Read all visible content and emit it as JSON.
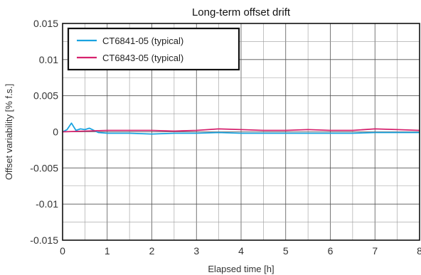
{
  "chart_data": {
    "type": "line",
    "title": "Long-term offset drift",
    "xlabel": "Elapsed time [h]",
    "ylabel": "Offset variability [% f.s.]",
    "xlim": [
      0,
      8
    ],
    "ylim": [
      -0.015,
      0.015
    ],
    "x_ticks": [
      "0",
      "1",
      "2",
      "3",
      "4",
      "5",
      "6",
      "7",
      "8"
    ],
    "y_ticks": [
      "0.015",
      "0.01",
      "0.005",
      "0",
      "-0.005",
      "-0.01",
      "-0.015"
    ],
    "grid": true,
    "legend_position": "top-left",
    "series": [
      {
        "name": "CT6841-05 (typical)",
        "color": "#1aa3e0",
        "x": [
          0,
          0.1,
          0.2,
          0.3,
          0.4,
          0.5,
          0.6,
          0.8,
          1,
          1.5,
          2,
          2.5,
          3,
          3.5,
          4,
          4.5,
          5,
          5.5,
          6,
          6.5,
          7,
          7.5,
          8
        ],
        "y": [
          0,
          0.0003,
          0.0012,
          0.0002,
          0.0004,
          0.0003,
          0.0005,
          -0.0001,
          -0.0002,
          -0.0002,
          -0.0003,
          -0.0002,
          -0.0002,
          -0.0001,
          -0.0002,
          -0.0002,
          -0.0002,
          -0.0002,
          -0.0002,
          -0.0002,
          -0.0001,
          -0.0001,
          -0.0001
        ]
      },
      {
        "name": "CT6843-05 (typical)",
        "color": "#d6226e",
        "x": [
          0,
          0.5,
          1,
          1.5,
          2,
          2.5,
          3,
          3.5,
          4,
          4.5,
          5,
          5.5,
          6,
          6.5,
          7,
          7.5,
          8
        ],
        "y": [
          0,
          0.0001,
          0.0002,
          0.0002,
          0.0002,
          0.0001,
          0.0002,
          0.0004,
          0.0003,
          0.0002,
          0.0002,
          0.0003,
          0.0002,
          0.0002,
          0.0004,
          0.0003,
          0.0002
        ]
      }
    ]
  }
}
